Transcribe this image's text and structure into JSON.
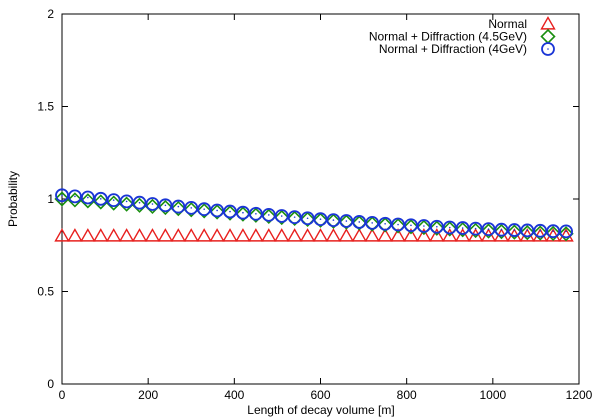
{
  "chart_data": {
    "type": "scatter",
    "xlabel": "Length of decay volume [m]",
    "ylabel": "Probability",
    "xlim": [
      0,
      1200
    ],
    "ylim": [
      0,
      2
    ],
    "x_ticks": [
      "0",
      "200",
      "400",
      "600",
      "800",
      "1000",
      "1200"
    ],
    "y_ticks": [
      "0",
      "0.5",
      "1",
      "1.5",
      "2"
    ],
    "legend_position": "top-right",
    "grid": false,
    "series": [
      {
        "name": "Normal",
        "marker": "triangle",
        "color": "#e8201f",
        "x": [
          0,
          30,
          60,
          90,
          120,
          150,
          180,
          210,
          240,
          270,
          300,
          330,
          360,
          390,
          420,
          450,
          480,
          510,
          540,
          570,
          600,
          630,
          660,
          690,
          720,
          750,
          780,
          810,
          840,
          870,
          900,
          930,
          960,
          990,
          1020,
          1050,
          1080,
          1110,
          1140,
          1170
        ],
        "y": [
          0.8,
          0.8,
          0.8,
          0.8,
          0.8,
          0.8,
          0.8,
          0.8,
          0.8,
          0.8,
          0.8,
          0.8,
          0.8,
          0.8,
          0.8,
          0.8,
          0.8,
          0.8,
          0.8,
          0.8,
          0.8,
          0.8,
          0.8,
          0.8,
          0.8,
          0.8,
          0.8,
          0.8,
          0.8,
          0.8,
          0.8,
          0.8,
          0.8,
          0.8,
          0.8,
          0.8,
          0.8,
          0.8,
          0.8,
          0.8
        ]
      },
      {
        "name": "Normal + Diffraction (4.5GeV)",
        "marker": "diamond",
        "color": "#1a8f10",
        "x": [
          0,
          30,
          60,
          90,
          120,
          150,
          180,
          210,
          240,
          270,
          300,
          330,
          360,
          390,
          420,
          450,
          480,
          510,
          540,
          570,
          600,
          630,
          660,
          690,
          720,
          750,
          780,
          810,
          840,
          870,
          900,
          930,
          960,
          990,
          1020,
          1050,
          1080,
          1110,
          1140,
          1170
        ],
        "y": [
          1.0,
          0.995,
          0.99,
          0.984,
          0.978,
          0.972,
          0.966,
          0.96,
          0.954,
          0.948,
          0.942,
          0.936,
          0.93,
          0.924,
          0.918,
          0.912,
          0.906,
          0.9,
          0.895,
          0.89,
          0.885,
          0.88,
          0.875,
          0.87,
          0.865,
          0.86,
          0.855,
          0.85,
          0.846,
          0.842,
          0.838,
          0.834,
          0.83,
          0.827,
          0.824,
          0.821,
          0.818,
          0.816,
          0.814,
          0.812
        ]
      },
      {
        "name": "Normal + Diffraction (4GeV)",
        "marker": "circle",
        "color": "#1a35d6",
        "x": [
          0,
          30,
          60,
          90,
          120,
          150,
          180,
          210,
          240,
          270,
          300,
          330,
          360,
          390,
          420,
          450,
          480,
          510,
          540,
          570,
          600,
          630,
          660,
          690,
          720,
          750,
          780,
          810,
          840,
          870,
          900,
          930,
          960,
          990,
          1020,
          1050,
          1080,
          1110,
          1140,
          1170
        ],
        "y": [
          1.02,
          1.014,
          1.008,
          1.001,
          0.994,
          0.987,
          0.98,
          0.973,
          0.966,
          0.959,
          0.952,
          0.945,
          0.938,
          0.932,
          0.926,
          0.92,
          0.914,
          0.908,
          0.902,
          0.896,
          0.891,
          0.886,
          0.881,
          0.876,
          0.871,
          0.866,
          0.862,
          0.858,
          0.854,
          0.85,
          0.846,
          0.843,
          0.84,
          0.837,
          0.834,
          0.832,
          0.83,
          0.828,
          0.826,
          0.825
        ]
      }
    ]
  }
}
